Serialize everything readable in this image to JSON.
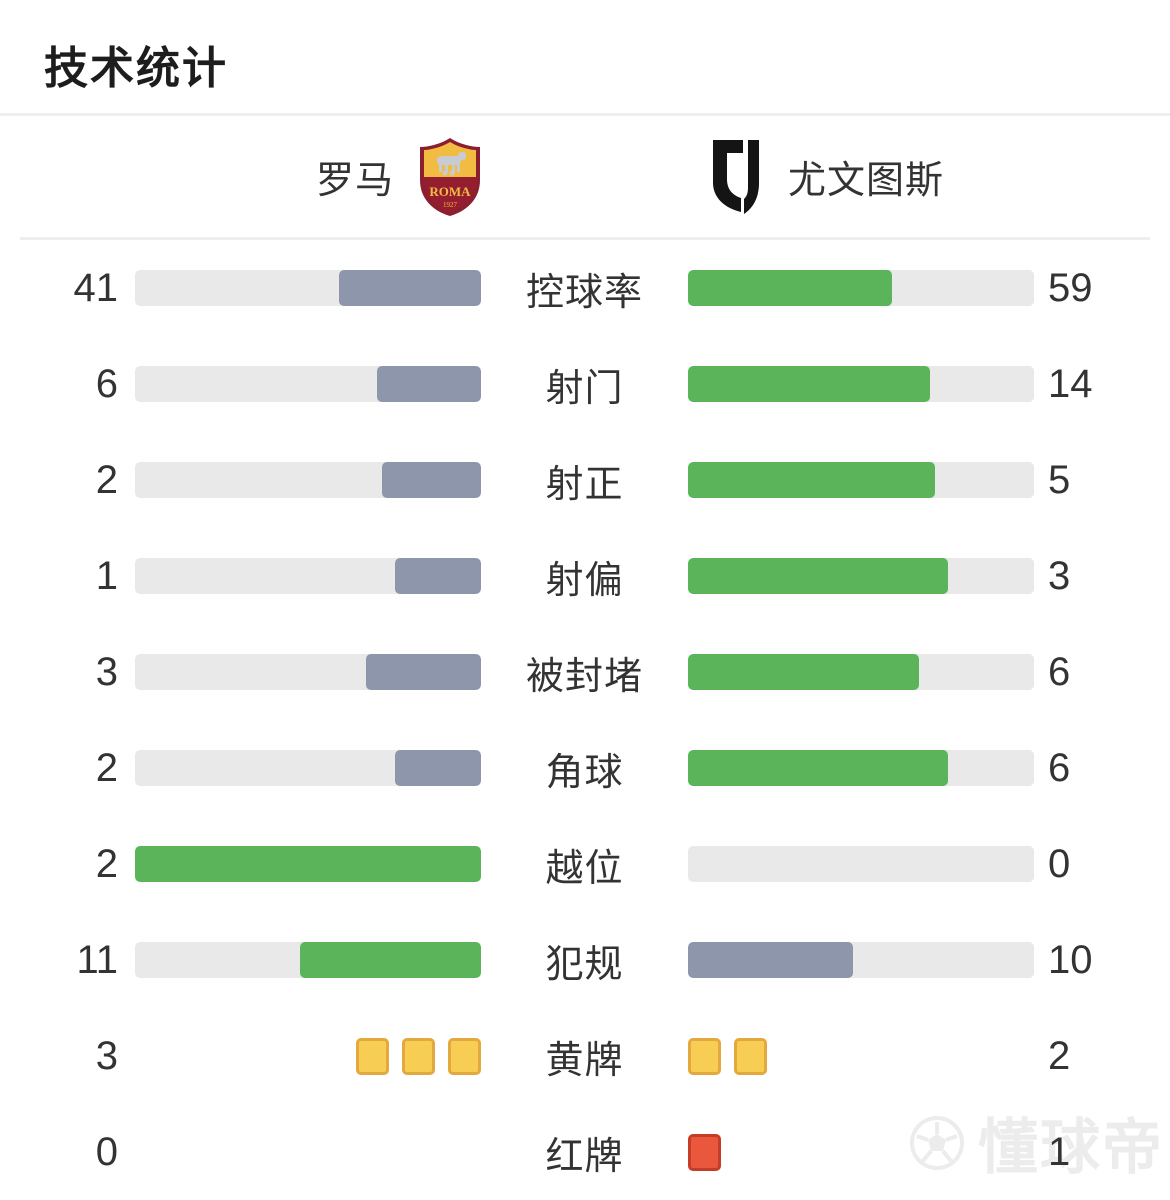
{
  "page": {
    "title": "技术统计",
    "watermark_text": "懂球帝"
  },
  "header": {
    "home_team": "罗马",
    "away_team": "尤文图斯",
    "home_crest_text": "ROMA",
    "home_crest_year": "1927"
  },
  "colors": {
    "green": "#5BB45A",
    "slate": "#8D96AA",
    "track": "#E9E9E9",
    "yellow_card": "#F7CE53",
    "yellow_card_border": "#E3A93E",
    "red_card": "#E9573D",
    "red_card_border": "#C53D28",
    "text": "#333333"
  },
  "chart_data": {
    "type": "bar",
    "title": "技术统计",
    "orientation": "paired-horizontal",
    "teams": [
      "罗马",
      "尤文图斯"
    ],
    "legend_position": "top",
    "rows": [
      {
        "label": "控球率",
        "home": 41,
        "away": 59,
        "type": "bar",
        "home_pct": 41,
        "away_pct": 59,
        "home_color": "slate",
        "away_color": "green"
      },
      {
        "label": "射门",
        "home": 6,
        "away": 14,
        "type": "bar",
        "home_pct": 30,
        "away_pct": 70,
        "home_color": "slate",
        "away_color": "green"
      },
      {
        "label": "射正",
        "home": 2,
        "away": 5,
        "type": "bar",
        "home_pct": 28.6,
        "away_pct": 71.4,
        "home_color": "slate",
        "away_color": "green"
      },
      {
        "label": "射偏",
        "home": 1,
        "away": 3,
        "type": "bar",
        "home_pct": 25,
        "away_pct": 75,
        "home_color": "slate",
        "away_color": "green"
      },
      {
        "label": "被封堵",
        "home": 3,
        "away": 6,
        "type": "bar",
        "home_pct": 33.3,
        "away_pct": 66.7,
        "home_color": "slate",
        "away_color": "green"
      },
      {
        "label": "角球",
        "home": 2,
        "away": 6,
        "type": "bar",
        "home_pct": 25,
        "away_pct": 75,
        "home_color": "slate",
        "away_color": "green"
      },
      {
        "label": "越位",
        "home": 2,
        "away": 0,
        "type": "bar",
        "home_pct": 100,
        "away_pct": 0,
        "home_color": "green",
        "away_color": "none"
      },
      {
        "label": "犯规",
        "home": 11,
        "away": 10,
        "type": "bar",
        "home_pct": 52.4,
        "away_pct": 47.6,
        "home_color": "green",
        "away_color": "slate"
      },
      {
        "label": "黄牌",
        "home": 3,
        "away": 2,
        "type": "cards",
        "card_color": "yellow"
      },
      {
        "label": "红牌",
        "home": 0,
        "away": 1,
        "type": "cards",
        "card_color": "red"
      }
    ]
  }
}
